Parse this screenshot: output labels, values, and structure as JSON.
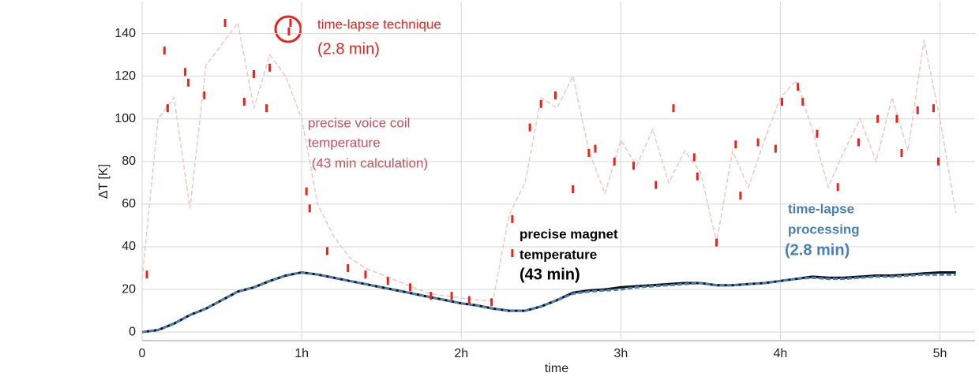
{
  "chart_data": {
    "type": "line",
    "y_label": "ΔT [K]",
    "x_label": "time",
    "xlim": [
      0,
      5.22
    ],
    "ylim": [
      -4,
      155
    ],
    "xticks": [
      0,
      {
        "value": 1,
        "label": "1h"
      },
      {
        "value": 2,
        "label": "2h"
      },
      {
        "value": 3,
        "label": "3h"
      },
      {
        "value": 4,
        "label": "4h"
      },
      {
        "value": 5,
        "label": "5h"
      }
    ],
    "yticks": [
      0,
      20,
      40,
      60,
      80,
      100,
      120,
      140
    ],
    "grid": true,
    "x": [
      0,
      0.1,
      0.2,
      0.3,
      0.4,
      0.5,
      0.6,
      0.7,
      0.8,
      0.9,
      1.0,
      1.1,
      1.2,
      1.3,
      1.4,
      1.5,
      1.6,
      1.7,
      1.8,
      1.9,
      2.0,
      2.1,
      2.2,
      2.3,
      2.4,
      2.5,
      2.6,
      2.7,
      2.8,
      2.9,
      3.0,
      3.1,
      3.2,
      3.3,
      3.4,
      3.5,
      3.6,
      3.7,
      3.8,
      3.9,
      4.0,
      4.1,
      4.2,
      4.3,
      4.4,
      4.5,
      4.6,
      4.7,
      4.8,
      4.9,
      5.0,
      5.1
    ],
    "series": [
      {
        "color": "#f4c4c4",
        "dash": true,
        "width": 1.5,
        "values": [
          25,
          100,
          110,
          58,
          125,
          135,
          145,
          105,
          130,
          120,
          100,
          60,
          45,
          35,
          30,
          27,
          24,
          21,
          18,
          17,
          16,
          15,
          15,
          55,
          70,
          110,
          105,
          120,
          85,
          65,
          90,
          78,
          95,
          70,
          85,
          75,
          42,
          85,
          68,
          90,
          110,
          118,
          95,
          68,
          85,
          100,
          80,
          110,
          85,
          137,
          100,
          56
        ]
      },
      {
        "color": "#111111",
        "dash": false,
        "width": 3,
        "values": [
          0,
          1,
          4,
          8,
          11,
          15,
          19,
          21,
          24,
          26.5,
          28,
          27,
          25.5,
          24,
          22.5,
          21,
          19.5,
          18,
          16.5,
          15,
          13.5,
          12.5,
          11,
          10,
          10,
          12,
          15,
          18.5,
          19.5,
          20,
          21,
          21.5,
          22,
          22.5,
          23,
          23,
          22,
          22,
          22.5,
          23,
          24,
          25,
          26,
          25.5,
          25.5,
          26,
          26.5,
          26.5,
          27,
          27.5,
          28,
          28
        ]
      },
      {
        "color": "#4a7fb5",
        "dash": true,
        "width": 3,
        "values": [
          0,
          1,
          4,
          8,
          11,
          15,
          19,
          21,
          24,
          26.5,
          28,
          27,
          25.5,
          24,
          22.5,
          21,
          19.5,
          18,
          16.5,
          15,
          13.5,
          12.5,
          11,
          10,
          10,
          12,
          15,
          18,
          19,
          19.5,
          20,
          21,
          21.5,
          22,
          22.5,
          23,
          22,
          22,
          22.5,
          23,
          24,
          25,
          25.5,
          25,
          25,
          25.5,
          26,
          26,
          26.5,
          27,
          27,
          27
        ]
      }
    ],
    "scatter": {
      "color": "#e8231c",
      "x": [
        0.03,
        0.14,
        0.16,
        0.27,
        0.29,
        0.39,
        0.52,
        0.64,
        0.7,
        0.78,
        0.8,
        0.92,
        0.93,
        1.03,
        1.05,
        1.16,
        1.29,
        1.4,
        1.54,
        1.68,
        1.81,
        1.94,
        2.05,
        2.19,
        2.32,
        2.32,
        2.43,
        2.5,
        2.59,
        2.7,
        2.8,
        2.84,
        2.96,
        3.08,
        3.22,
        3.33,
        3.46,
        3.48,
        3.6,
        3.72,
        3.75,
        3.86,
        3.97,
        4.01,
        4.11,
        4.14,
        4.23,
        4.36,
        4.49,
        4.61,
        4.73,
        4.76,
        4.86,
        4.96,
        4.99
      ],
      "values": [
        27,
        132,
        105,
        122,
        117,
        111,
        145,
        108,
        121,
        105,
        124,
        141,
        145,
        66,
        58,
        38,
        30,
        27,
        24,
        21,
        17,
        17,
        15,
        14,
        53,
        37,
        96,
        107,
        111,
        67,
        84,
        86,
        80,
        78,
        69,
        105,
        82,
        73,
        42,
        88,
        64,
        89,
        86,
        108,
        115,
        108,
        93,
        68,
        89,
        100,
        100,
        84,
        104,
        105,
        80
      ]
    },
    "annotations": {
      "technique": [
        "time-lapse technique",
        "(2.8 min)"
      ],
      "voice_coil": [
        "precise voice coil",
        "temperature",
        " (43 min calculation)"
      ],
      "magnet": [
        "precise magnet",
        "temperature",
        "(43 min)"
      ],
      "processing": [
        "time-lapse",
        "processing",
        "(2.8 min)"
      ]
    }
  }
}
